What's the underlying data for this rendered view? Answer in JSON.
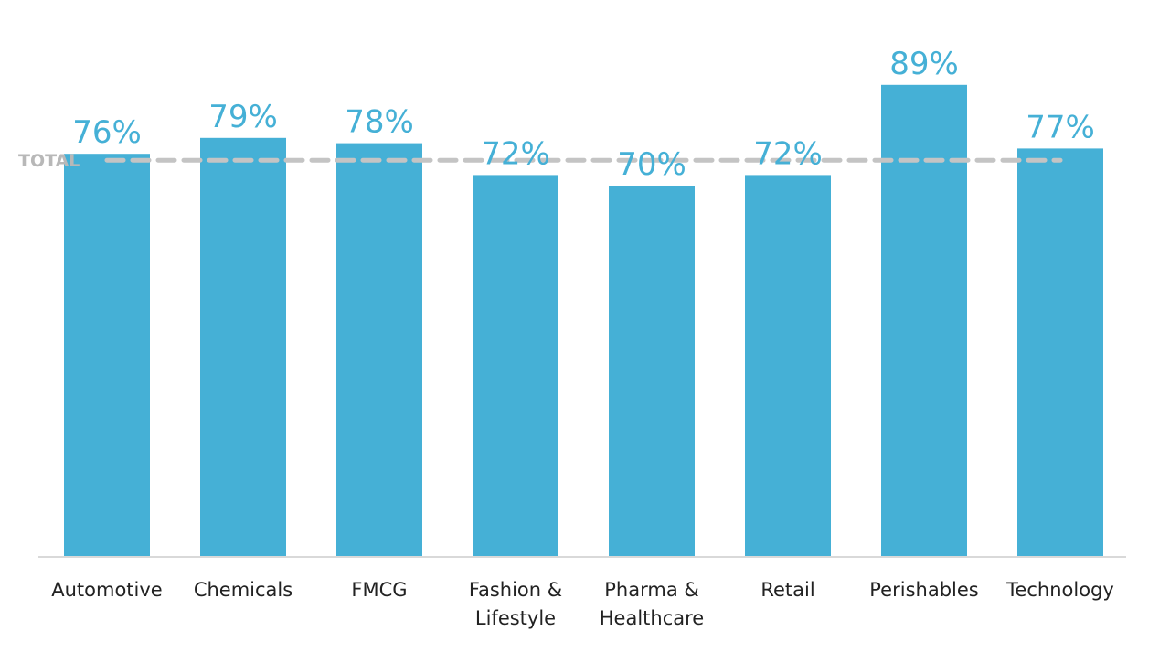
{
  "chart_data": {
    "type": "bar",
    "categories": [
      [
        "Automotive"
      ],
      [
        "Chemicals"
      ],
      [
        "FMCG"
      ],
      [
        "Fashion &",
        "Lifestyle"
      ],
      [
        "Pharma &",
        "Healthcare"
      ],
      [
        "Retail"
      ],
      [
        "Perishables"
      ],
      [
        "Technology"
      ]
    ],
    "values": [
      76,
      79,
      78,
      72,
      70,
      72,
      89,
      77
    ],
    "value_labels": [
      "76%",
      "79%",
      "78%",
      "72%",
      "70%",
      "72%",
      "89%",
      "77%"
    ],
    "reference_line": {
      "label": "TOTAL",
      "value": 76,
      "style": "dashed"
    },
    "ylim": [
      0,
      100
    ],
    "grid": false,
    "legend": "none",
    "colors": {
      "bar": "#45b0d6",
      "label": "#45b0d6",
      "reference": "#c4c4c4",
      "axis": "#d9d9d9",
      "text": "#222222"
    }
  }
}
